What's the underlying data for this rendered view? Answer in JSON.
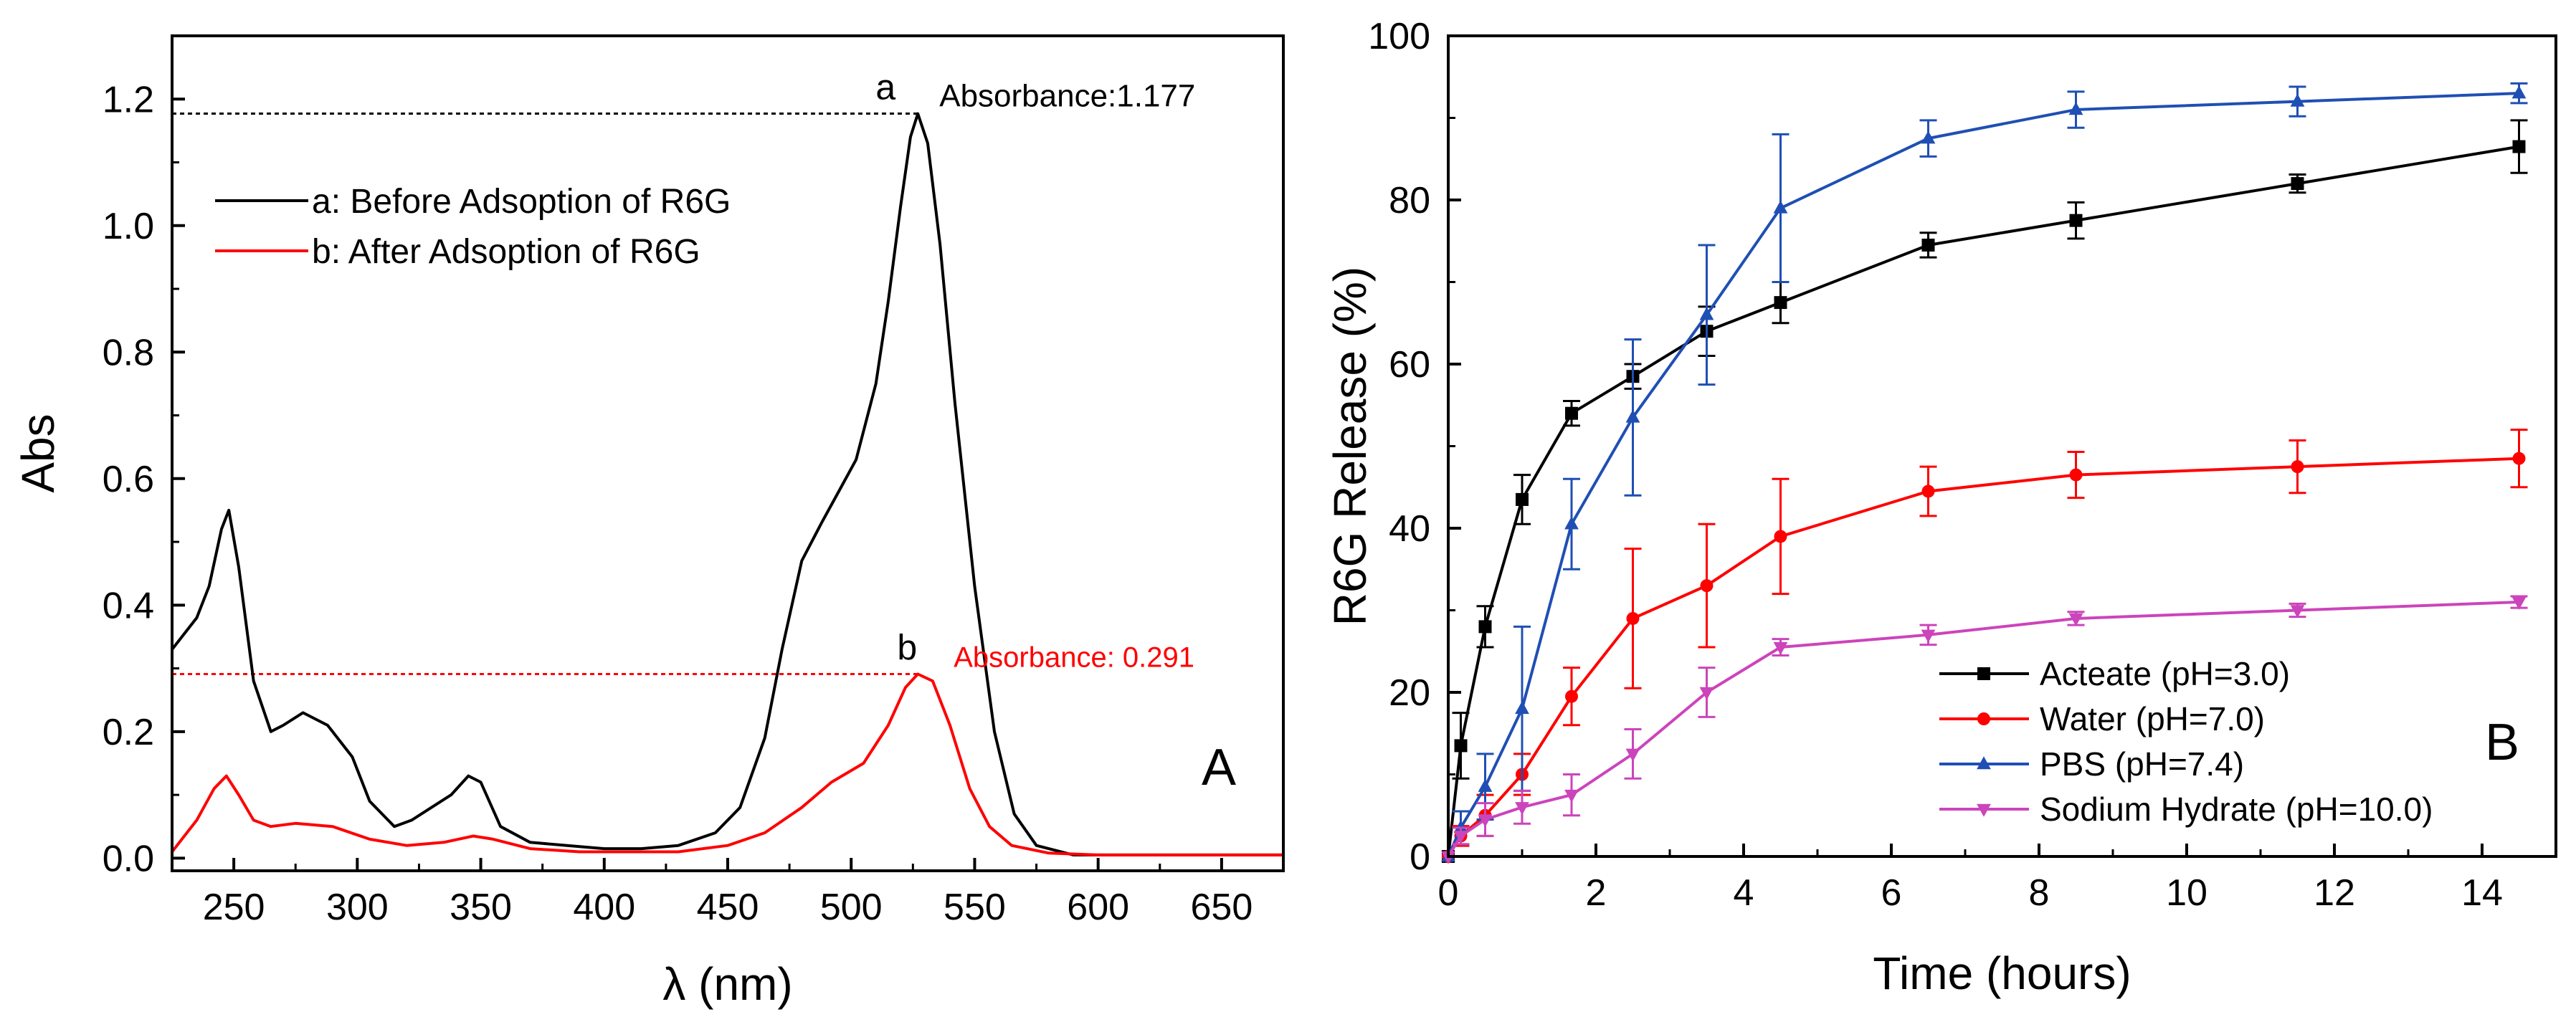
{
  "chart_data": [
    {
      "type": "line",
      "panel_label": "A",
      "xlabel": "λ (nm)",
      "ylabel": "Abs",
      "xlim": [
        225,
        675
      ],
      "ylim": [
        -0.02,
        1.3
      ],
      "xticks": [
        250,
        300,
        350,
        400,
        450,
        500,
        550,
        600,
        650
      ],
      "yticks": [
        0.0,
        0.2,
        0.4,
        0.6,
        0.8,
        1.0,
        1.2
      ],
      "ytick_labels": [
        "0.0",
        "0.2",
        "0.4",
        "0.6",
        "0.8",
        "1.0",
        "1.2"
      ],
      "legend": {
        "placement": "top-left",
        "entries": [
          "a: Before Adsoption of R6G",
          "b: After Adsoption of R6G"
        ]
      },
      "series": [
        {
          "name": "a: Before Adsoption of R6G",
          "color": "#000000",
          "x": [
            225,
            235,
            240,
            245,
            248,
            252,
            258,
            265,
            270,
            278,
            288,
            298,
            305,
            315,
            322,
            330,
            338,
            345,
            350,
            358,
            370,
            385,
            400,
            415,
            430,
            445,
            455,
            465,
            472,
            480,
            488,
            495,
            502,
            510,
            515,
            520,
            524,
            527,
            531,
            536,
            542,
            550,
            558,
            566,
            575,
            590,
            610,
            640,
            675
          ],
          "y": [
            0.33,
            0.38,
            0.43,
            0.52,
            0.55,
            0.46,
            0.28,
            0.2,
            0.21,
            0.23,
            0.21,
            0.16,
            0.09,
            0.05,
            0.06,
            0.08,
            0.1,
            0.13,
            0.12,
            0.05,
            0.025,
            0.02,
            0.015,
            0.015,
            0.02,
            0.04,
            0.08,
            0.19,
            0.33,
            0.47,
            0.53,
            0.58,
            0.63,
            0.75,
            0.88,
            1.03,
            1.14,
            1.177,
            1.13,
            0.97,
            0.72,
            0.43,
            0.2,
            0.07,
            0.02,
            0.005,
            0.005,
            0.005,
            0.005
          ]
        },
        {
          "name": "b: After Adsoption of R6G",
          "color": "#ff0000",
          "x": [
            225,
            235,
            242,
            247,
            252,
            258,
            265,
            275,
            290,
            305,
            320,
            335,
            347,
            355,
            370,
            390,
            410,
            430,
            450,
            465,
            480,
            492,
            505,
            515,
            522,
            527,
            533,
            540,
            548,
            556,
            565,
            580,
            600,
            640,
            675
          ],
          "y": [
            0.01,
            0.06,
            0.11,
            0.13,
            0.1,
            0.06,
            0.05,
            0.055,
            0.05,
            0.03,
            0.02,
            0.025,
            0.035,
            0.03,
            0.015,
            0.01,
            0.01,
            0.01,
            0.02,
            0.04,
            0.08,
            0.12,
            0.15,
            0.21,
            0.27,
            0.291,
            0.28,
            0.21,
            0.11,
            0.05,
            0.02,
            0.008,
            0.005,
            0.005,
            0.005
          ]
        }
      ],
      "annotations": [
        {
          "label": "a",
          "text": "Absorbance:1.177",
          "value": 1.177,
          "color": "#000000"
        },
        {
          "label": "b",
          "text": "Absorbance: 0.291",
          "value": 0.291,
          "color": "#ff0000"
        }
      ]
    },
    {
      "type": "line",
      "panel_label": "B",
      "xlabel": "Time (hours)",
      "ylabel": "R6G Release (%)",
      "xlim": [
        0,
        15
      ],
      "ylim": [
        0,
        100
      ],
      "xticks": [
        0,
        2,
        4,
        6,
        8,
        10,
        12,
        14
      ],
      "yticks": [
        0,
        20,
        40,
        60,
        80,
        100
      ],
      "legend": {
        "placement": "bottom-right"
      },
      "series": [
        {
          "name": "Acteate (pH=3.0)",
          "color": "#000000",
          "marker": "square",
          "x": [
            0,
            0.17,
            0.5,
            1,
            1.67,
            2.5,
            3.5,
            4.5,
            6.5,
            8.5,
            11.5,
            14.5
          ],
          "y": [
            0,
            13.5,
            28,
            43.5,
            54,
            58.5,
            64,
            67.5,
            74.5,
            77.5,
            82,
            86.5
          ],
          "err": [
            0,
            4,
            2.5,
            3,
            1.5,
            1.5,
            3,
            2.5,
            1.5,
            2.2,
            1.1,
            3.2
          ]
        },
        {
          "name": "Water (pH=7.0)",
          "color": "#ff0000",
          "marker": "circle",
          "x": [
            0,
            0.17,
            0.5,
            1,
            1.67,
            2.5,
            3.5,
            4.5,
            6.5,
            8.5,
            11.5,
            14.5
          ],
          "y": [
            0,
            2.5,
            5,
            10,
            19.5,
            29,
            33,
            39,
            44.5,
            46.5,
            47.5,
            48.5
          ],
          "err": [
            0,
            1.2,
            2.5,
            2.5,
            3.5,
            8.5,
            7.5,
            7,
            3,
            2.8,
            3.2,
            3.5
          ]
        },
        {
          "name": "PBS (pH=7.4)",
          "color": "#1f4fb4",
          "marker": "triangle-up",
          "x": [
            0,
            0.17,
            0.5,
            1,
            1.67,
            2.5,
            3.5,
            4.5,
            6.5,
            8.5,
            11.5,
            14.5
          ],
          "y": [
            0,
            3.5,
            8.5,
            18,
            40.5,
            53.5,
            66,
            79,
            87.5,
            91,
            92,
            93
          ],
          "err": [
            0,
            2,
            4,
            10,
            5.5,
            9.5,
            8.5,
            9,
            2.2,
            2.2,
            1.8,
            1.2
          ]
        },
        {
          "name": "Sodium Hydrate (pH=10.0)",
          "color": "#cc44bb",
          "marker": "triangle-down",
          "x": [
            0,
            0.17,
            0.5,
            1,
            1.67,
            2.5,
            3.5,
            4.5,
            6.5,
            8.5,
            11.5,
            14.5
          ],
          "y": [
            0,
            2.5,
            4.5,
            6,
            7.5,
            12.5,
            20,
            25.5,
            27,
            29,
            30,
            31
          ],
          "err": [
            0,
            1,
            2,
            2,
            2.5,
            3,
            3,
            1,
            1.2,
            0.8,
            0.8,
            0.7
          ]
        }
      ]
    }
  ]
}
